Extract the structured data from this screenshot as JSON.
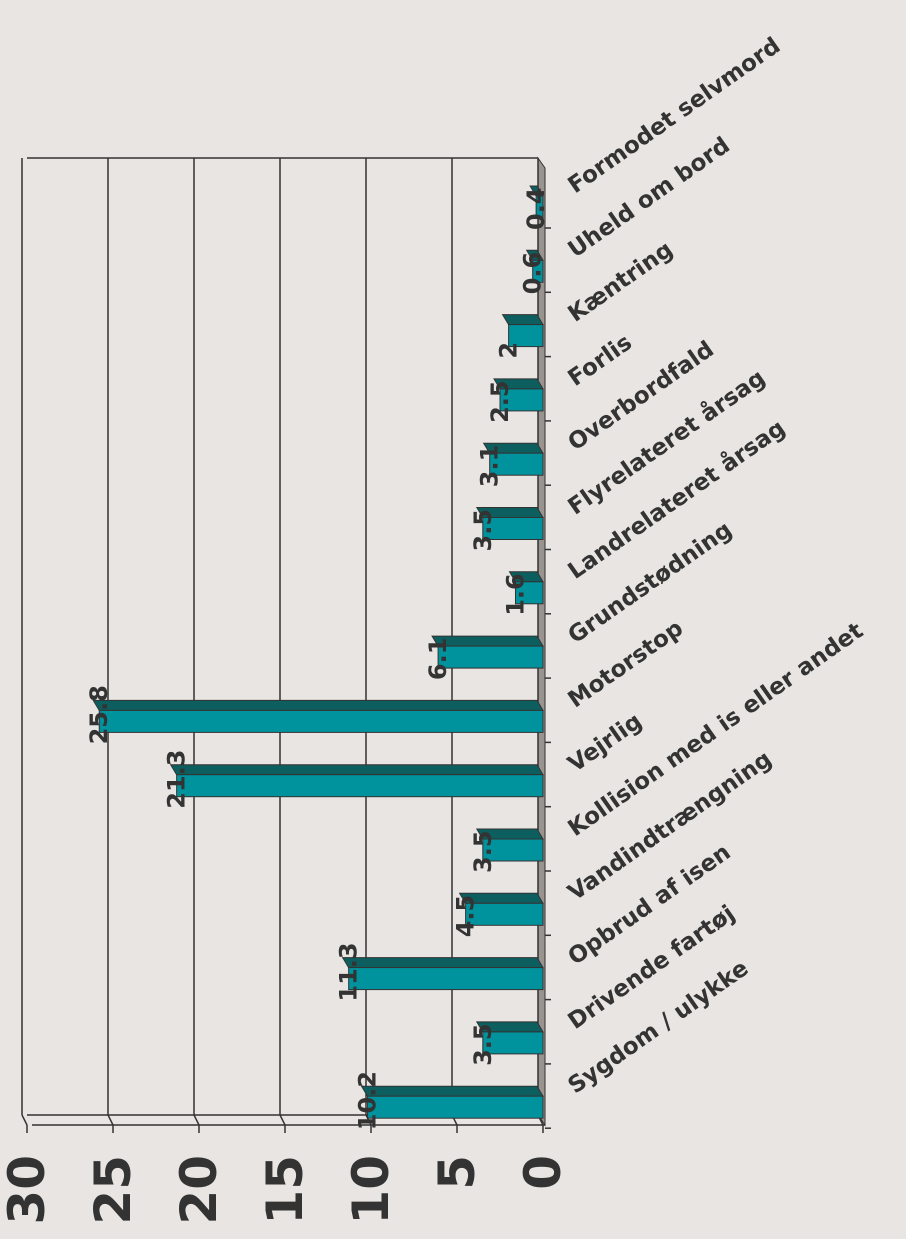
{
  "chart_data": {
    "type": "bar",
    "orientation": "horizontal",
    "categories": [
      "Formodet selvmord",
      "Uheld om bord",
      "Kæntring",
      "Forlis",
      "Overbordfald",
      "Flyrelateret årsag",
      "Landrelateret årsag",
      "Grundstødning",
      "Motorstop",
      "Vejrlig",
      "Kollision med is eller andet",
      "Vandindtrængning",
      "Opbrud af isen",
      "Drivende fartøj",
      "Sygdom / ulykke"
    ],
    "values": [
      0.4,
      0.6,
      2,
      2.5,
      3.1,
      3.5,
      1.6,
      6.1,
      25.8,
      21.3,
      3.5,
      4.5,
      11.3,
      3.5,
      10.2
    ],
    "color": "#00939e",
    "top_color": "#0d5f5f",
    "xlim": [
      0,
      30
    ],
    "xticks": [
      0,
      5,
      10,
      15,
      20,
      25,
      30
    ],
    "grid": true
  }
}
